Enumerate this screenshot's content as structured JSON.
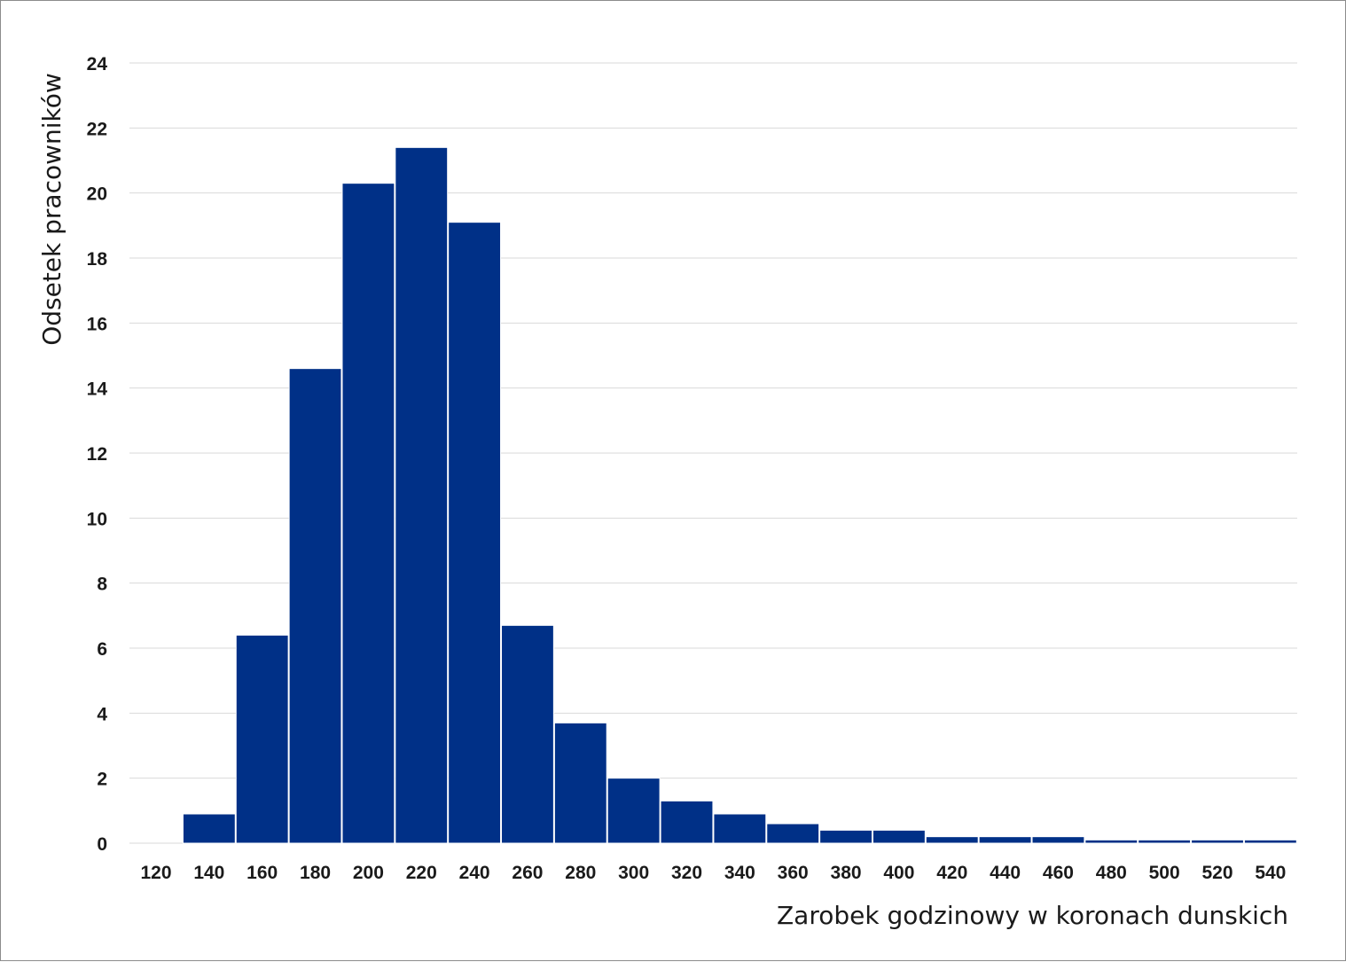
{
  "chart_data": {
    "type": "bar",
    "title": "",
    "xlabel": "Zarobek godzinowy w koronach dunskich",
    "ylabel": "Odsetek pracowników",
    "categories": [
      "120",
      "140",
      "160",
      "180",
      "200",
      "220",
      "240",
      "260",
      "280",
      "300",
      "320",
      "340",
      "360",
      "380",
      "400",
      "420",
      "440",
      "460",
      "480",
      "500",
      "520",
      "540"
    ],
    "values": [
      0,
      0.9,
      6.4,
      14.6,
      20.3,
      21.4,
      19.1,
      6.7,
      3.7,
      2.0,
      1.3,
      0.9,
      0.6,
      0.4,
      0.4,
      0.2,
      0.2,
      0.2,
      0.1,
      0.1,
      0.1,
      0.1
    ],
    "yticks": [
      "0",
      "2",
      "4",
      "6",
      "8",
      "10",
      "12",
      "14",
      "16",
      "18",
      "20",
      "22",
      "24"
    ],
    "ylim": [
      0,
      24
    ],
    "grid": true,
    "legend": "none",
    "colors": {
      "bar": "#003087",
      "grid": "#d9d9d9",
      "text": "#1a1a1a"
    }
  }
}
